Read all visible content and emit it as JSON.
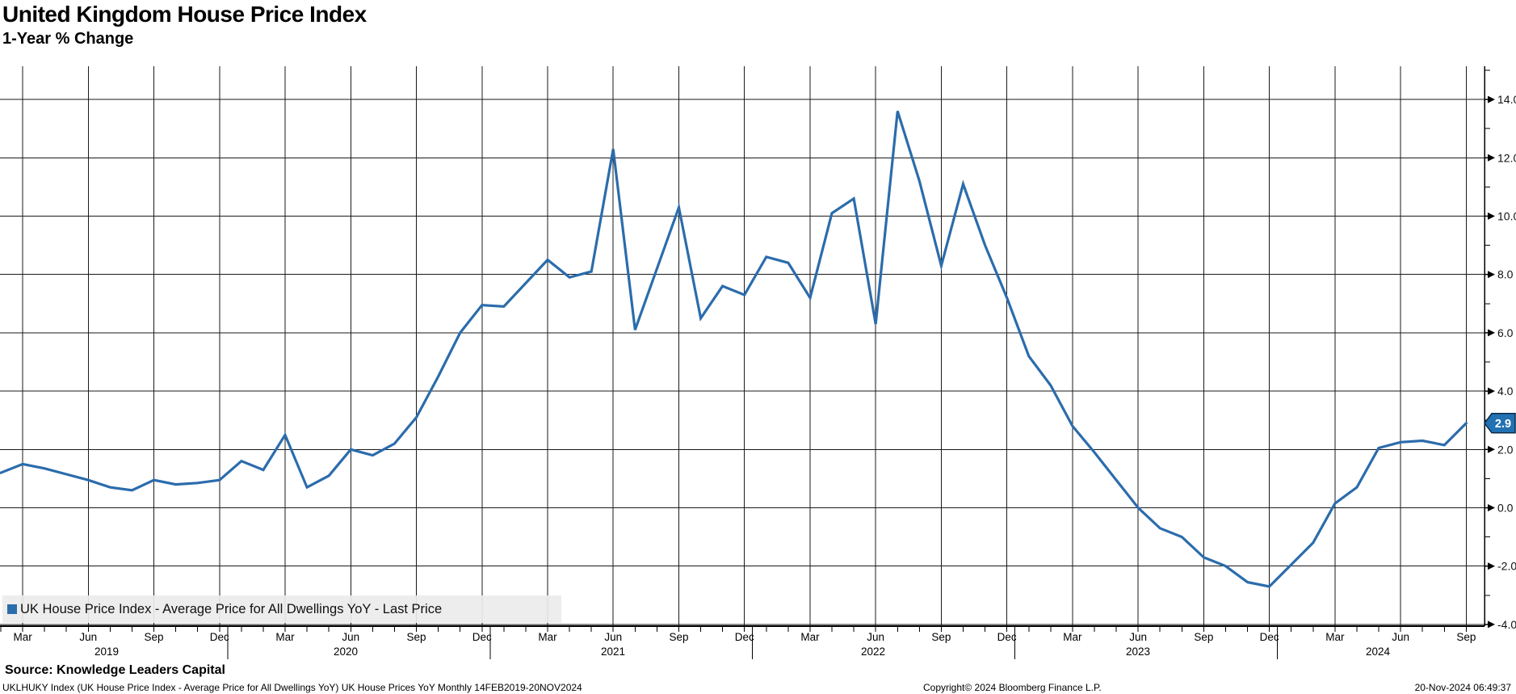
{
  "header": {
    "title": "United Kingdom House Price Index",
    "subtitle": "1-Year % Change"
  },
  "legend": {
    "label": "UK House Price Index - Average Price for All Dwellings YoY - Last Price",
    "marker_color": "#2b6cac"
  },
  "last_price": {
    "value": "2.9",
    "box_color": "#2171b3",
    "box_border": "#0d2a45",
    "text_color": "#ffffff"
  },
  "footer": {
    "source": "Source: Knowledge Leaders Capital",
    "description": "UKLHUKY Index (UK House Price Index - Average Price for All Dwellings YoY) UK House Prices YoY  Monthly 14FEB2019-20NOV2024",
    "copyright": "Copyright© 2024 Bloomberg Finance L.P.",
    "timestamp": "20-Nov-2024 06:49:37"
  },
  "chart_data": {
    "type": "line",
    "title": "United Kingdom House Price Index",
    "subtitle": "1-Year % Change",
    "x_start": "2019-02",
    "x_end": "2024-09",
    "x_freq": "monthly",
    "grid": true,
    "legend_position": "bottom-left",
    "ylim": [
      -4.6,
      15.2
    ],
    "y_major_ticks": [
      14,
      12,
      10,
      8,
      6,
      4,
      2,
      0,
      -2,
      -4
    ],
    "y_minor_ticks": [
      15,
      13,
      11,
      9,
      7,
      5,
      3,
      1,
      -1,
      -3
    ],
    "quarter_tick_cycle": [
      "Mar",
      "Jun",
      "Sep",
      "Dec"
    ],
    "year_labels": [
      "2019",
      "2020",
      "2021",
      "2022",
      "2023",
      "2024"
    ],
    "series": [
      {
        "name": "UK House Price Index - Average Price for All Dwellings YoY - Last Price",
        "color": "#2b6cac",
        "values": [
          1.2,
          1.5,
          1.35,
          1.15,
          0.95,
          0.7,
          0.6,
          0.95,
          0.8,
          0.85,
          0.95,
          1.6,
          1.3,
          2.5,
          0.7,
          1.1,
          2.0,
          1.8,
          2.2,
          3.1,
          4.5,
          6.0,
          6.95,
          6.9,
          7.7,
          8.5,
          7.9,
          8.1,
          12.3,
          6.1,
          8.2,
          10.3,
          6.5,
          7.6,
          7.3,
          8.6,
          8.4,
          7.2,
          10.1,
          10.6,
          6.3,
          13.6,
          11.2,
          8.3,
          11.1,
          9.0,
          7.2,
          5.2,
          4.2,
          2.8,
          1.9,
          0.95,
          0.0,
          -0.7,
          -1.0,
          -1.7,
          -2.0,
          -2.55,
          -2.7,
          -1.95,
          -1.2,
          0.15,
          0.7,
          2.05,
          2.25,
          2.3,
          2.15,
          2.9
        ]
      }
    ],
    "last_price_label": 2.9
  }
}
